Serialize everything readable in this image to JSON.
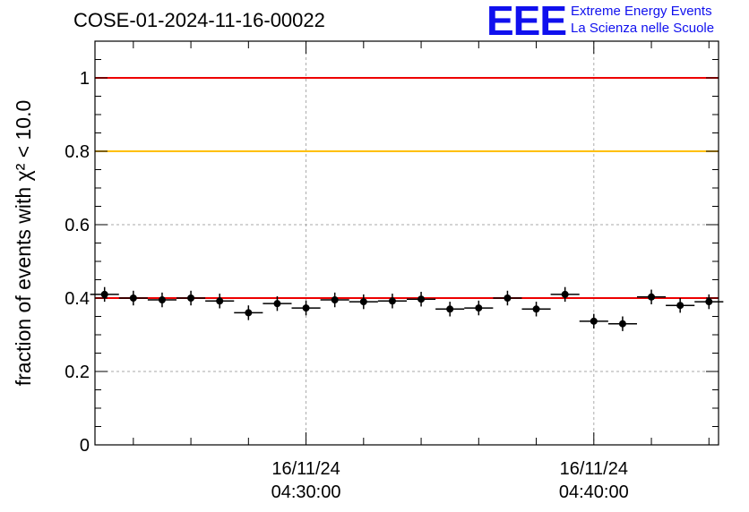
{
  "header": {
    "title": "COSE-01-2024-11-16-00022",
    "logo_mark": "EEE",
    "logo_line1": "Extreme Energy Events",
    "logo_line2": "La Scienza nelle Scuole"
  },
  "colors": {
    "points": "#000000",
    "reference_line": "#ee0000",
    "threshold_line": "#ffc000",
    "fit_line": "#ee0000",
    "grid": "#aaaaaa",
    "logo": "#1010ee"
  },
  "chart_data": {
    "type": "scatter",
    "title": "COSE-01-2024-11-16-00022",
    "ylabel": "fraction of events with χ² < 10.0",
    "xlabel": "",
    "ylim": [
      0,
      1.1
    ],
    "yticks": [
      0,
      0.2,
      0.4,
      0.6,
      0.8,
      1
    ],
    "ytick_labels": [
      "0",
      "0.2",
      "0.4",
      "0.6",
      "0.8",
      "1"
    ],
    "xlim": [
      "04:22:40",
      "04:44:20"
    ],
    "xtick_labels": [
      {
        "time": "04:30:00",
        "date": "16/11/24",
        "label": "04:30:00"
      },
      {
        "time": "04:40:00",
        "date": "16/11/24",
        "label": "04:40:00"
      }
    ],
    "x_minor_ticks": [
      "04:24:00",
      "04:26:00",
      "04:28:00",
      "04:32:00",
      "04:34:00",
      "04:36:00",
      "04:38:00",
      "04:42:00",
      "04:44:00"
    ],
    "grid": true,
    "horizontal_lines": [
      {
        "y": 1.0,
        "color": "#ee0000"
      },
      {
        "y": 0.8,
        "color": "#ffc000"
      },
      {
        "y": 0.4,
        "color": "#ee0000"
      }
    ],
    "x": [
      "04:23:00",
      "04:24:00",
      "04:25:00",
      "04:26:00",
      "04:27:00",
      "04:28:00",
      "04:29:00",
      "04:30:00",
      "04:31:00",
      "04:32:00",
      "04:33:00",
      "04:34:00",
      "04:35:00",
      "04:36:00",
      "04:37:00",
      "04:38:00",
      "04:39:00",
      "04:40:00",
      "04:41:00",
      "04:42:00",
      "04:43:00",
      "04:44:00"
    ],
    "x_halfwidth_seconds": 30,
    "series": [
      {
        "values": [
          0.41,
          0.4,
          0.395,
          0.4,
          0.392,
          0.36,
          0.385,
          0.373,
          0.395,
          0.39,
          0.392,
          0.397,
          0.37,
          0.373,
          0.4,
          0.37,
          0.41,
          0.337,
          0.33,
          0.403,
          0.38,
          0.39
        ],
        "errors": [
          0.02,
          0.02,
          0.02,
          0.02,
          0.02,
          0.02,
          0.02,
          0.02,
          0.02,
          0.02,
          0.02,
          0.02,
          0.02,
          0.02,
          0.02,
          0.02,
          0.02,
          0.02,
          0.02,
          0.02,
          0.02,
          0.02
        ]
      }
    ]
  }
}
